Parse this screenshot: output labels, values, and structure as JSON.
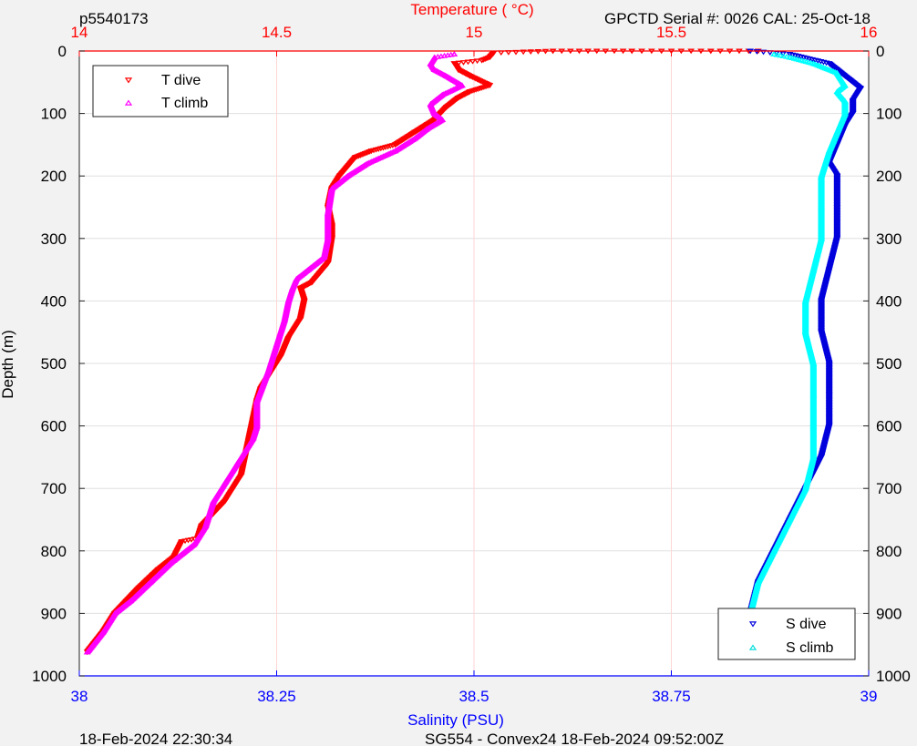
{
  "header": {
    "profile_id": "p5540173",
    "serial": "GPCTD Serial #: 0026 CAL: 25-Oct-18"
  },
  "footer": {
    "left": "18-Feb-2024 22:30:34",
    "center": "SG554 - Convex24 18-Feb-2024 09:52:00Z"
  },
  "colors": {
    "t_dive": "#ff0000",
    "t_climb": "#ff00ff",
    "s_dive": "#0000dd",
    "s_climb": "#00ffff",
    "temp_axis": "#ff0000",
    "sal_axis": "#0000ff",
    "background": "#f2f2f2",
    "plot_bg": "#ffffff"
  },
  "chart_data": {
    "type": "scatter",
    "title": "",
    "temperature_axis": {
      "label": "Temperature (    °C)",
      "range": [
        14,
        16
      ],
      "ticks": [
        "14",
        "14.5",
        "15",
        "15.5",
        "16"
      ]
    },
    "salinity_axis": {
      "label": "Salinity (PSU)",
      "range": [
        38,
        39
      ],
      "ticks": [
        "38",
        "38.25",
        "38.5",
        "38.75",
        "39"
      ]
    },
    "depth_axis": {
      "label": "Depth (m)",
      "range": [
        0,
        1000
      ],
      "ticks": [
        "0",
        "100",
        "200",
        "300",
        "400",
        "500",
        "600",
        "700",
        "800",
        "900",
        "1000"
      ],
      "reversed": true
    },
    "legends": [
      {
        "placement": "top-left",
        "entries": [
          "T dive",
          "T climb"
        ]
      },
      {
        "placement": "bottom-right",
        "entries": [
          "S dive",
          "S climb"
        ]
      }
    ],
    "series": [
      {
        "name": "T dive",
        "axis": "temperature",
        "points": [
          [
            15.72,
            0
          ],
          [
            15.6,
            0
          ],
          [
            15.4,
            0
          ],
          [
            15.2,
            0
          ],
          [
            15.05,
            3
          ],
          [
            15.04,
            10
          ],
          [
            15.02,
            15
          ],
          [
            14.95,
            20
          ],
          [
            14.96,
            30
          ],
          [
            14.99,
            40
          ],
          [
            15.04,
            55
          ],
          [
            14.99,
            65
          ],
          [
            14.96,
            75
          ],
          [
            14.93,
            90
          ],
          [
            14.9,
            110
          ],
          [
            14.85,
            130
          ],
          [
            14.8,
            150
          ],
          [
            14.74,
            160
          ],
          [
            14.7,
            170
          ],
          [
            14.68,
            185
          ],
          [
            14.66,
            200
          ],
          [
            14.64,
            220
          ],
          [
            14.63,
            250
          ],
          [
            14.64,
            280
          ],
          [
            14.64,
            300
          ],
          [
            14.63,
            340
          ],
          [
            14.61,
            355
          ],
          [
            14.59,
            370
          ],
          [
            14.56,
            380
          ],
          [
            14.57,
            400
          ],
          [
            14.56,
            430
          ],
          [
            14.53,
            460
          ],
          [
            14.51,
            490
          ],
          [
            14.48,
            520
          ],
          [
            14.46,
            540
          ],
          [
            14.45,
            560
          ],
          [
            14.44,
            590
          ],
          [
            14.43,
            620
          ],
          [
            14.42,
            650
          ],
          [
            14.41,
            680
          ],
          [
            14.37,
            720
          ],
          [
            14.34,
            740
          ],
          [
            14.31,
            760
          ],
          [
            14.3,
            780
          ],
          [
            14.26,
            785
          ],
          [
            14.24,
            810
          ],
          [
            14.2,
            830
          ],
          [
            14.15,
            860
          ],
          [
            14.12,
            880
          ],
          [
            14.09,
            900
          ],
          [
            14.06,
            930
          ],
          [
            14.02,
            962
          ]
        ]
      },
      {
        "name": "T climb",
        "axis": "temperature",
        "points": [
          [
            14.95,
            5
          ],
          [
            14.9,
            10
          ],
          [
            14.89,
            20
          ],
          [
            14.9,
            30
          ],
          [
            14.93,
            40
          ],
          [
            14.97,
            55
          ],
          [
            14.92,
            70
          ],
          [
            14.89,
            85
          ],
          [
            14.9,
            100
          ],
          [
            14.92,
            110
          ],
          [
            14.88,
            125
          ],
          [
            14.85,
            140
          ],
          [
            14.8,
            160
          ],
          [
            14.73,
            180
          ],
          [
            14.68,
            200
          ],
          [
            14.64,
            220
          ],
          [
            14.63,
            260
          ],
          [
            14.63,
            300
          ],
          [
            14.62,
            330
          ],
          [
            14.58,
            350
          ],
          [
            14.55,
            365
          ],
          [
            14.54,
            380
          ],
          [
            14.53,
            400
          ],
          [
            14.52,
            430
          ],
          [
            14.5,
            470
          ],
          [
            14.48,
            510
          ],
          [
            14.45,
            560
          ],
          [
            14.45,
            600
          ],
          [
            14.44,
            620
          ],
          [
            14.4,
            660
          ],
          [
            14.37,
            690
          ],
          [
            14.34,
            720
          ],
          [
            14.32,
            760
          ],
          [
            14.29,
            790
          ],
          [
            14.23,
            820
          ],
          [
            14.18,
            850
          ],
          [
            14.13,
            880
          ],
          [
            14.09,
            900
          ],
          [
            14.06,
            930
          ],
          [
            14.02,
            962
          ]
        ]
      },
      {
        "name": "S dive",
        "axis": "salinity",
        "points": [
          [
            38.85,
            0
          ],
          [
            38.9,
            5
          ],
          [
            38.95,
            20
          ],
          [
            38.99,
            60
          ],
          [
            38.98,
            80
          ],
          [
            38.98,
            100
          ],
          [
            38.97,
            120
          ],
          [
            38.96,
            150
          ],
          [
            38.95,
            180
          ],
          [
            38.96,
            200
          ],
          [
            38.96,
            250
          ],
          [
            38.96,
            300
          ],
          [
            38.95,
            350
          ],
          [
            38.94,
            400
          ],
          [
            38.94,
            450
          ],
          [
            38.95,
            500
          ],
          [
            38.95,
            550
          ],
          [
            38.95,
            600
          ],
          [
            38.94,
            650
          ],
          [
            38.92,
            700
          ],
          [
            38.9,
            750
          ],
          [
            38.88,
            800
          ],
          [
            38.86,
            850
          ],
          [
            38.85,
            900
          ],
          [
            38.84,
            962
          ]
        ]
      },
      {
        "name": "S climb",
        "axis": "salinity",
        "points": [
          [
            38.88,
            5
          ],
          [
            38.9,
            10
          ],
          [
            38.93,
            20
          ],
          [
            38.96,
            35
          ],
          [
            38.97,
            55
          ],
          [
            38.96,
            65
          ],
          [
            38.97,
            80
          ],
          [
            38.97,
            100
          ],
          [
            38.96,
            130
          ],
          [
            38.95,
            160
          ],
          [
            38.94,
            200
          ],
          [
            38.94,
            250
          ],
          [
            38.94,
            300
          ],
          [
            38.93,
            350
          ],
          [
            38.92,
            400
          ],
          [
            38.92,
            450
          ],
          [
            38.93,
            500
          ],
          [
            38.93,
            550
          ],
          [
            38.93,
            600
          ],
          [
            38.93,
            650
          ],
          [
            38.92,
            700
          ],
          [
            38.9,
            750
          ],
          [
            38.88,
            800
          ],
          [
            38.86,
            850
          ],
          [
            38.85,
            900
          ],
          [
            38.84,
            962
          ]
        ]
      }
    ]
  }
}
